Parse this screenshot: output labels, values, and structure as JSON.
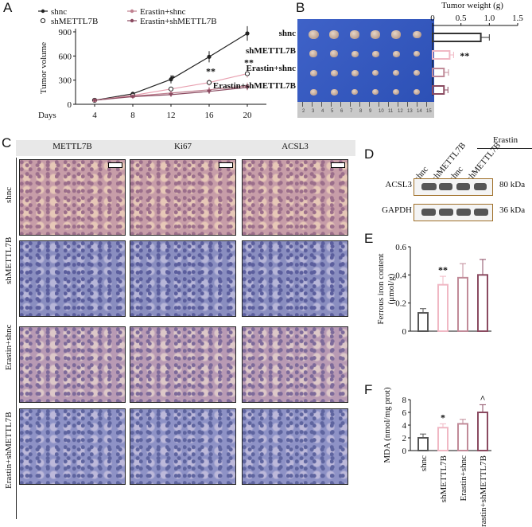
{
  "panel_labels": {
    "A": "A",
    "B": "B",
    "C": "C",
    "D": "D",
    "E": "E",
    "F": "F"
  },
  "chart_data": [
    {
      "type": "line",
      "panel": "A",
      "xlabel": "Days",
      "ylabel": "Tumor volume",
      "x": [
        4,
        8,
        12,
        16,
        20
      ],
      "ylim": [
        0,
        900
      ],
      "yticks": [
        0,
        300,
        600,
        900
      ],
      "series": [
        {
          "name": "shnc",
          "values": [
            50,
            130,
            310,
            590,
            880
          ],
          "errors": [
            10,
            25,
            50,
            70,
            90
          ],
          "color": "#222222",
          "marker": "diamond"
        },
        {
          "name": "shMETTL7B",
          "values": [
            50,
            110,
            190,
            270,
            380
          ],
          "errors": [
            10,
            20,
            30,
            40,
            50
          ],
          "color": "#e8a0b0",
          "marker": "circle-open"
        },
        {
          "name": "Erastin+shnc",
          "values": [
            50,
            100,
            140,
            180,
            230
          ],
          "errors": [
            10,
            20,
            25,
            35,
            40
          ],
          "color": "#c08090",
          "marker": "triangle"
        },
        {
          "name": "Erastin+shMETTL7B",
          "values": [
            50,
            95,
            120,
            160,
            210
          ],
          "errors": [
            10,
            15,
            25,
            30,
            35
          ],
          "color": "#8a4a60",
          "marker": "triangle-down"
        }
      ],
      "annotations": [
        {
          "x": 12,
          "text": "*"
        },
        {
          "x": 16,
          "text": "**"
        },
        {
          "x": 20,
          "text": "**"
        }
      ]
    },
    {
      "type": "bar",
      "panel": "B",
      "title": "Tumor weight (g)",
      "orientation": "horizontal",
      "categories": [
        "shnc",
        "shMETTL7B",
        "Erastin+shnc",
        "Erastin+shMETTL7B"
      ],
      "values": [
        0.85,
        0.3,
        0.2,
        0.2
      ],
      "errors": [
        0.15,
        0.07,
        0.08,
        0.07
      ],
      "colors": [
        "#333333",
        "#f0b8c4",
        "#c08a98",
        "#8a4a60"
      ],
      "xlim": [
        0,
        1.5
      ],
      "xticks": [
        "0",
        "0.5",
        "1.0",
        "1.5"
      ],
      "annotations": [
        {
          "category": "shMETTL7B",
          "text": "**"
        }
      ]
    },
    {
      "type": "bar",
      "panel": "E",
      "ylabel": "Ferrous iron content (μmol/g)",
      "categories": [
        "shnc",
        "shMETTL7B",
        "Erastin+shnc",
        "Erastin+shMETTL7B"
      ],
      "values": [
        0.13,
        0.33,
        0.38,
        0.4
      ],
      "errors": [
        0.03,
        0.06,
        0.1,
        0.11
      ],
      "colors": [
        "#555555",
        "#f0b8c4",
        "#c08a98",
        "#8a4a60"
      ],
      "ylim": [
        0,
        0.6
      ],
      "yticks": [
        "0",
        "0.2",
        "0.4",
        "0.6"
      ],
      "annotations": [
        {
          "category": "shMETTL7B",
          "text": "**"
        }
      ]
    },
    {
      "type": "bar",
      "panel": "F",
      "ylabel": "MDA (nmol/mg prot)",
      "categories": [
        "shnc",
        "shMETTL7B",
        "Erastin+shnc",
        "Erastin+shMETTL7B"
      ],
      "values": [
        2.0,
        3.6,
        4.2,
        6.0
      ],
      "errors": [
        0.6,
        0.6,
        0.7,
        1.2
      ],
      "colors": [
        "#555555",
        "#f0b8c4",
        "#c08a98",
        "#8a4a60"
      ],
      "ylim": [
        0,
        8
      ],
      "yticks": [
        "0",
        "2",
        "4",
        "6",
        "8"
      ],
      "annotations": [
        {
          "category": "shMETTL7B",
          "text": "*"
        },
        {
          "category": "Erastin+shMETTL7B",
          "text": "^"
        }
      ]
    }
  ],
  "panelB": {
    "row_labels": [
      "shnc",
      "shMETTL7B",
      "Erastin+shnc",
      "Erastin+shMETTL7B"
    ],
    "ruler_numbers": [
      "2",
      "3",
      "4",
      "5",
      "6",
      "7",
      "8",
      "9",
      "10",
      "11",
      "12",
      "13",
      "14",
      "15"
    ]
  },
  "panelC": {
    "columns": [
      "METTL7B",
      "Ki67",
      "ACSL3"
    ],
    "rows": [
      "shnc",
      "shMETTL7B",
      "Erastin+shnc",
      "Erastin+shMETTL7B"
    ]
  },
  "panelD": {
    "lanes": [
      "shnc",
      "shMETTL7B",
      "shnc",
      "shMETTL7B"
    ],
    "treatment_label": "Erastin",
    "bands": [
      {
        "name": "ACSL3",
        "size": "80 kDa"
      },
      {
        "name": "GAPDH",
        "size": "36 kDa"
      }
    ]
  }
}
